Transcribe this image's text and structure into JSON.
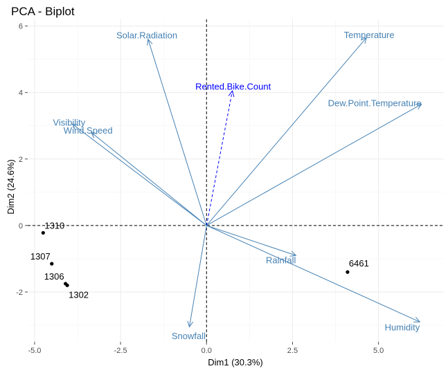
{
  "chart_data": {
    "type": "scatter",
    "title": "PCA - Biplot",
    "xlabel": "Dim1 (30.3%)",
    "ylabel": "Dim2 (24.6%)",
    "xlim": [
      -5.2,
      6.9
    ],
    "ylim": [
      -3.5,
      6.2
    ],
    "x_ticks": [
      -5.0,
      -2.5,
      0.0,
      2.5,
      5.0
    ],
    "x_tick_labels": [
      "-5.0",
      "-2.5",
      "0.0",
      "2.5",
      "5.0"
    ],
    "y_ticks": [
      -2,
      0,
      2,
      4,
      6
    ],
    "y_tick_labels": [
      "-2",
      "0",
      "2",
      "4",
      "6"
    ],
    "grid": true,
    "reference_lines": {
      "x": 0,
      "y": 0,
      "style": "dashed"
    },
    "individuals": [
      {
        "label": "1310",
        "x": -4.75,
        "y": -0.22
      },
      {
        "label": "1307",
        "x": -4.5,
        "y": -1.15
      },
      {
        "label": "1306",
        "x": -4.1,
        "y": -1.75
      },
      {
        "label": "1302",
        "x": -4.05,
        "y": -1.8
      },
      {
        "label": "6461",
        "x": 4.1,
        "y": -1.4
      }
    ],
    "variables": [
      {
        "name": "Solar.Radiation",
        "x": -1.7,
        "y": 5.6,
        "color": "#4682b4",
        "dashed": false
      },
      {
        "name": "Temperature",
        "x": 4.65,
        "y": 5.65,
        "color": "#4682b4",
        "dashed": false
      },
      {
        "name": "Rented.Bike.Count",
        "x": 0.75,
        "y": 4.05,
        "color": "#0000ff",
        "dashed": true
      },
      {
        "name": "Dew.Point.Temperature",
        "x": 6.25,
        "y": 3.65,
        "color": "#4682b4",
        "dashed": false
      },
      {
        "name": "Visibility",
        "x": -3.9,
        "y": 3.05,
        "color": "#4682b4",
        "dashed": false
      },
      {
        "name": "Wind.Speed",
        "x": -3.35,
        "y": 2.8,
        "color": "#4682b4",
        "dashed": false
      },
      {
        "name": "Rainfall",
        "x": 2.6,
        "y": -0.9,
        "color": "#4682b4",
        "dashed": false
      },
      {
        "name": "Snowfall",
        "x": -0.5,
        "y": -3.05,
        "color": "#4682b4",
        "dashed": false
      },
      {
        "name": "Humidity",
        "x": 6.2,
        "y": -2.9,
        "color": "#4682b4",
        "dashed": false
      }
    ]
  }
}
